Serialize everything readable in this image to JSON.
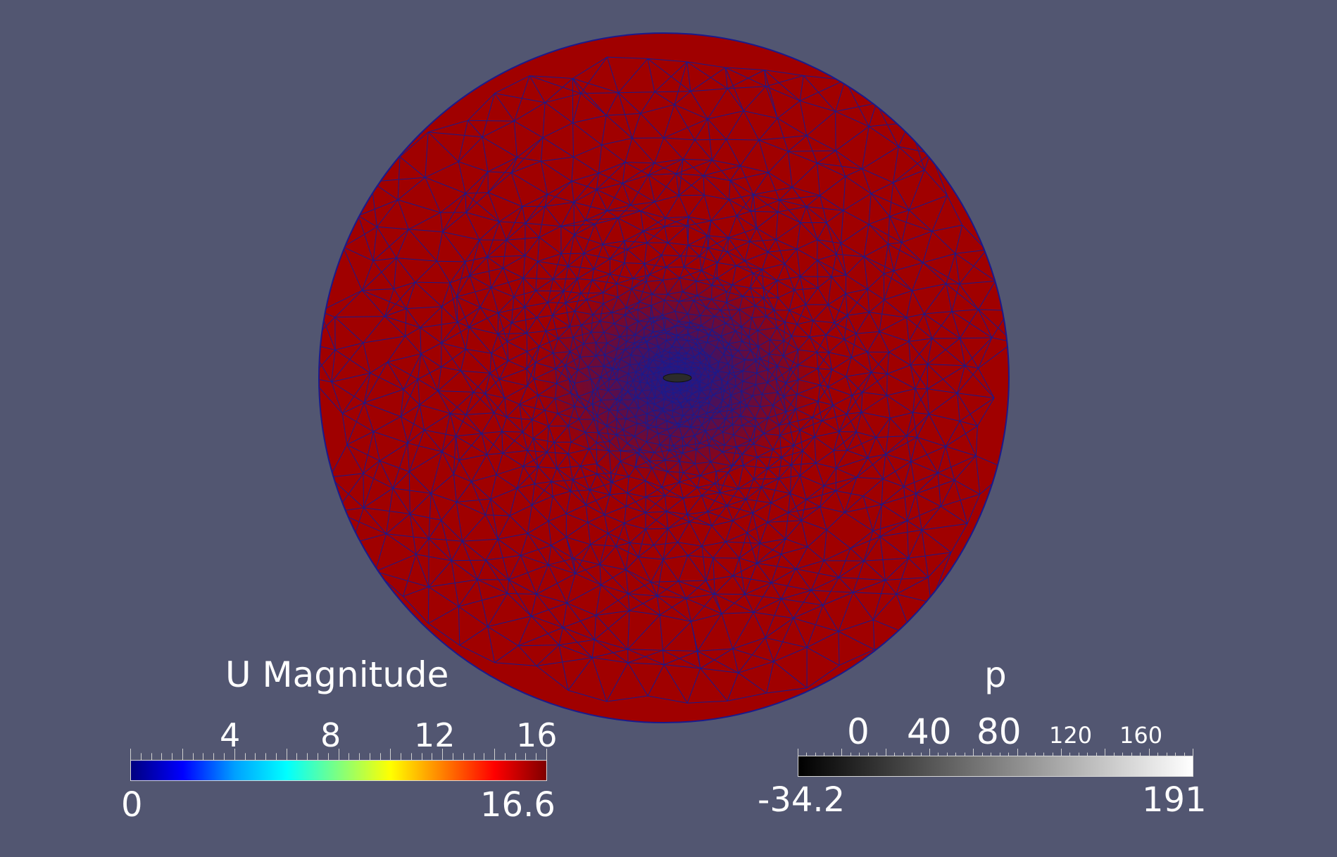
{
  "viewer": {
    "background_color": "#525671",
    "mesh_fill_color": "#a00000",
    "mesh_edge_color": "#1a1a8c",
    "body_color": "#2b2b2b"
  },
  "colorbar_u": {
    "title": "U Magnitude",
    "min_label": "0",
    "max_label": "16.6",
    "tick_labels": [
      "4",
      "8",
      "12",
      "16"
    ],
    "colors": [
      "#00007f",
      "#0000ff",
      "#00a0ff",
      "#00ffff",
      "#7fff7f",
      "#ffff00",
      "#ff8000",
      "#ff0000",
      "#800000"
    ]
  },
  "colorbar_p": {
    "title": "p",
    "min_label": "-34.2",
    "max_label": "191",
    "tick_labels": [
      "0",
      "40",
      "80",
      "120",
      "160"
    ],
    "colors": [
      "#000000",
      "#ffffff"
    ]
  }
}
